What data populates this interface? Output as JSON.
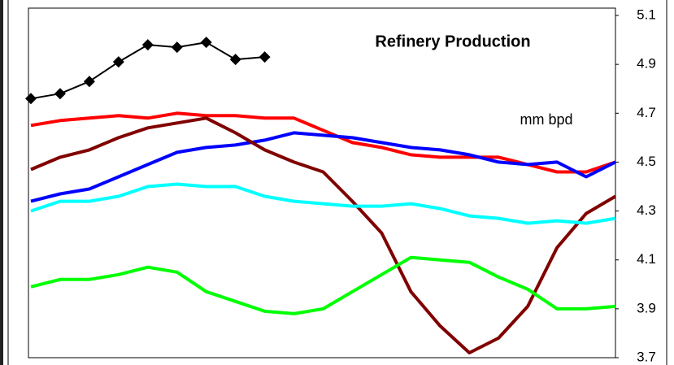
{
  "chart_data": {
    "type": "line",
    "title": "Refinery Production",
    "annotation": "mm bpd",
    "categories": [
      null,
      null,
      null,
      null,
      null,
      null,
      null,
      null,
      null,
      null,
      null,
      null,
      null,
      null,
      null,
      null,
      null,
      null,
      null,
      null,
      null
    ],
    "ylim": [
      3.7,
      5.13
    ],
    "yticks": [
      3.7,
      3.9,
      4.1,
      4.3,
      4.5,
      4.7,
      4.9,
      5.1
    ],
    "y_axis_side": "right",
    "grid": false,
    "series": [
      {
        "color": "#000000",
        "marker": "diamond",
        "values": [
          4.76,
          4.78,
          4.83,
          4.91,
          4.98,
          4.97,
          4.99,
          4.92,
          4.93,
          null,
          null,
          null,
          null,
          null,
          null,
          null,
          null,
          null,
          null,
          null,
          null
        ]
      },
      {
        "color": "#ff0000",
        "values": [
          4.65,
          4.67,
          4.68,
          4.69,
          4.68,
          4.7,
          4.69,
          4.69,
          4.68,
          4.68,
          4.63,
          4.58,
          4.56,
          4.53,
          4.52,
          4.52,
          4.52,
          4.49,
          4.46,
          4.46,
          4.5
        ]
      },
      {
        "color": "#0000ff",
        "values": [
          4.34,
          4.37,
          4.39,
          4.44,
          4.49,
          4.54,
          4.56,
          4.57,
          4.59,
          4.62,
          4.61,
          4.6,
          4.58,
          4.56,
          4.55,
          4.53,
          4.5,
          4.49,
          4.5,
          4.44,
          4.5
        ]
      },
      {
        "color": "#800000",
        "values": [
          4.47,
          4.52,
          4.55,
          4.6,
          4.64,
          4.66,
          4.68,
          4.62,
          4.55,
          4.5,
          4.46,
          4.34,
          4.21,
          3.97,
          3.83,
          3.72,
          3.78,
          3.91,
          4.15,
          4.29,
          4.36
        ]
      },
      {
        "color": "#00ffff",
        "values": [
          4.3,
          4.34,
          4.34,
          4.36,
          4.4,
          4.41,
          4.4,
          4.4,
          4.36,
          4.34,
          4.33,
          4.32,
          4.32,
          4.33,
          4.31,
          4.28,
          4.27,
          4.25,
          4.26,
          4.25,
          4.27
        ]
      },
      {
        "color": "#00ff00",
        "values": [
          3.99,
          4.02,
          4.02,
          4.04,
          4.07,
          4.05,
          3.97,
          3.93,
          3.89,
          3.88,
          3.9,
          3.97,
          4.04,
          4.11,
          4.1,
          4.09,
          4.03,
          3.98,
          3.9,
          3.9,
          3.91
        ]
      }
    ]
  }
}
